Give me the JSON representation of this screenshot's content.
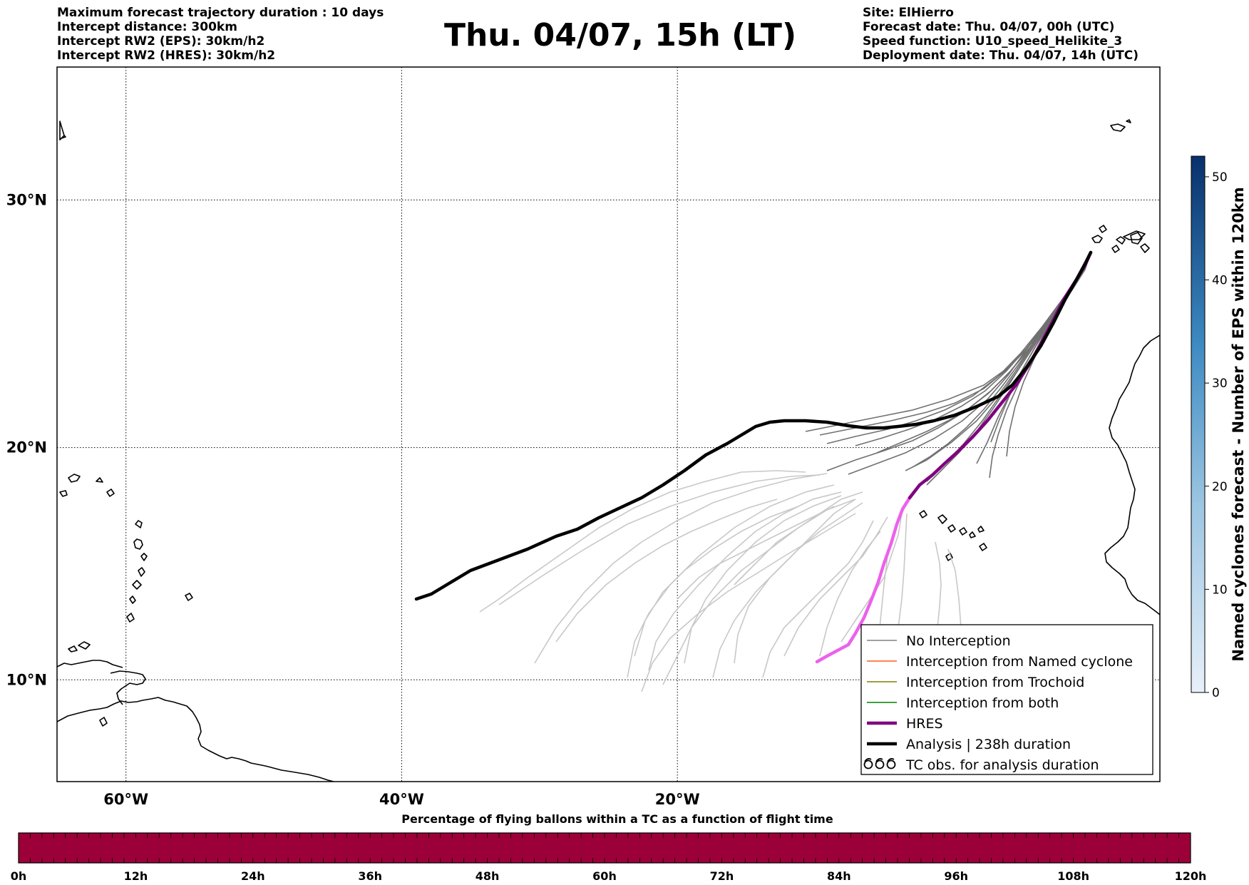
{
  "header_left": [
    "Maximum forecast trajectory duration : 10 days",
    "Intercept distance: 300km",
    "Intercept RW2 (EPS):  30km/h2",
    "Intercept RW2 (HRES): 30km/h2"
  ],
  "header_right": [
    "Site: ElHierro",
    "Forecast date: Thu. 04/07, 00h (UTC)",
    "Speed function: U10_speed_Helikite_3",
    "Deployment date: Thu. 04/07, 14h (UTC)"
  ],
  "title": "Thu. 04/07, 15h (LT)",
  "map": {
    "lon_range": [
      -65,
      15
    ],
    "lat_range": [
      5.5,
      35
    ],
    "lon_ticks": [
      {
        "value": -60,
        "label": "60°W"
      },
      {
        "value": -40,
        "label": "40°W"
      },
      {
        "value": -20,
        "label": "20°W"
      }
    ],
    "lat_ticks": [
      {
        "value": 10,
        "label": "10°N"
      },
      {
        "value": 20,
        "label": "20°N"
      },
      {
        "value": 30,
        "label": "30°N"
      }
    ],
    "grid": true
  },
  "colorbar": {
    "label": "Named cyclones forecast - Number of EPS within 120km",
    "ticks": [
      "0",
      "10",
      "20",
      "30",
      "40",
      "50"
    ],
    "min": 0,
    "max": 52,
    "color_low": "#e6eef9",
    "color_high": "#08306b"
  },
  "legend": {
    "entries": [
      {
        "label": "No Interception",
        "color": "#808080",
        "kind": "line-thin"
      },
      {
        "label": "Interception from Named cyclone",
        "color": "#ff5a1e",
        "kind": "line-thin"
      },
      {
        "label": "Interception from Trochoid",
        "color": "#808000",
        "kind": "line-thin"
      },
      {
        "label": "Interception from both",
        "color": "#008000",
        "kind": "line-thin"
      },
      {
        "label": "HRES",
        "color": "#800080",
        "kind": "line-thick"
      },
      {
        "label": "Analysis | 238h duration",
        "color": "#000000",
        "kind": "line-thick"
      },
      {
        "label": "TC obs. for analysis duration",
        "color": "#000000",
        "kind": "tc-symbol"
      }
    ]
  },
  "hbar": {
    "title": "Percentage of flying ballons within a TC as a function of flight time",
    "tick_labels": [
      "0h",
      "12h",
      "24h",
      "36h",
      "48h",
      "60h",
      "72h",
      "84h",
      "96h",
      "108h",
      "120h"
    ],
    "fill_color": "#9c0039"
  }
}
